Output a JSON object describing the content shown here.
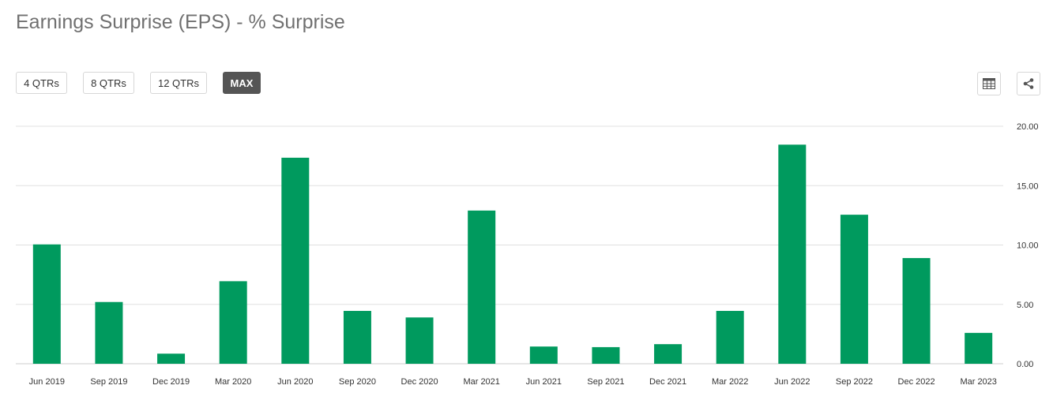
{
  "header": {
    "title": "Earnings Surprise (EPS) - % Surprise"
  },
  "range_buttons": [
    {
      "label": "4 QTRs",
      "active": false
    },
    {
      "label": "8 QTRs",
      "active": false
    },
    {
      "label": "12 QTRs",
      "active": false
    },
    {
      "label": "MAX",
      "active": true
    }
  ],
  "toolbar": {
    "table_icon": "table-icon",
    "share_icon": "share-icon"
  },
  "colors": {
    "bar": "#009a5e",
    "grid": "#e0e0e0",
    "active_button": "#555555"
  },
  "chart_data": {
    "type": "bar",
    "categories": [
      "Jun 2019",
      "Sep 2019",
      "Dec 2019",
      "Mar 2020",
      "Jun 2020",
      "Sep 2020",
      "Dec 2020",
      "Mar 2021",
      "Jun 2021",
      "Sep 2021",
      "Dec 2021",
      "Mar 2022",
      "Jun 2022",
      "Sep 2022",
      "Dec 2022",
      "Mar 2023"
    ],
    "values": [
      10.05,
      5.2,
      0.85,
      6.95,
      17.35,
      4.45,
      3.9,
      12.9,
      1.45,
      1.4,
      1.65,
      4.45,
      18.45,
      12.55,
      8.9,
      2.6
    ],
    "ylim": [
      0,
      20
    ],
    "yticks": [
      "0.00",
      "5.00",
      "10.00",
      "15.00",
      "20.00"
    ],
    "ytick_values": [
      0,
      5,
      10,
      15,
      20
    ],
    "grid": true,
    "y_axis_side": "right",
    "title": "",
    "xlabel": "",
    "ylabel": ""
  }
}
